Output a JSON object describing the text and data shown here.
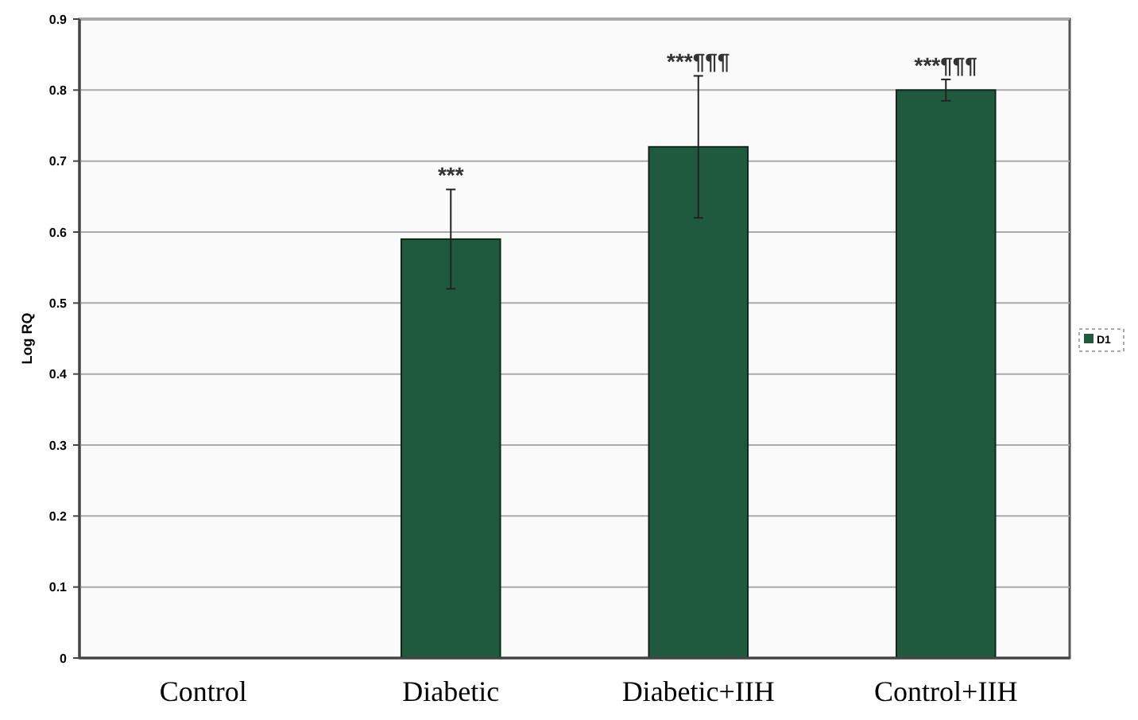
{
  "chart_data": {
    "type": "bar",
    "ylabel": "Log RQ",
    "categories": [
      "Control",
      "Diabetic",
      "Diabetic+IIH",
      "Control+IIH"
    ],
    "series": [
      {
        "name": "D1",
        "color": "#1f5a3f",
        "values": [
          0,
          0.59,
          0.72,
          0.8
        ],
        "errors": [
          null,
          0.07,
          0.1,
          0.015
        ]
      }
    ],
    "ylim": [
      0,
      0.9
    ],
    "yticks": [
      0,
      0.1,
      0.2,
      0.3,
      0.4,
      0.5,
      0.6,
      0.7,
      0.8,
      0.9
    ],
    "grid": "y",
    "legend": "right",
    "annotations": [
      {
        "text": "***",
        "x": "Diabetic",
        "y": 0.66
      },
      {
        "text": "***¶¶¶",
        "x": "Diabetic+IIH",
        "y": 0.82
      },
      {
        "text": "***¶¶¶",
        "x": "Control+IIH",
        "y": 0.815
      }
    ]
  }
}
